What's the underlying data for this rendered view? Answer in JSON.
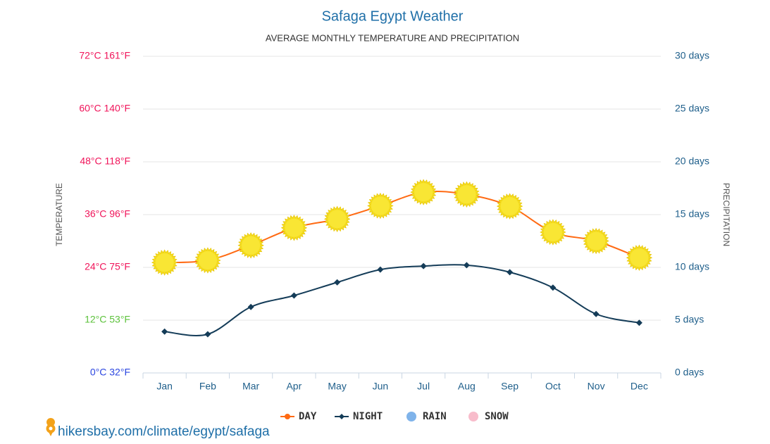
{
  "chart_data": {
    "type": "line",
    "title": "Safaga Egypt Weather",
    "subtitle": "AVERAGE MONTHLY TEMPERATURE AND PRECIPITATION",
    "y_label": "TEMPERATURE",
    "y2_label": "PRECIPITATION",
    "source": "hikersbay.com/climate/egypt/safaga",
    "categories": [
      "Jan",
      "Feb",
      "Mar",
      "Apr",
      "May",
      "Jun",
      "Jul",
      "Aug",
      "Sep",
      "Oct",
      "Nov",
      "Dec"
    ],
    "series": [
      {
        "name": "DAY",
        "color": "#ff6a13",
        "marker": "sun",
        "values": [
          25.1,
          25.6,
          29,
          33,
          35,
          38,
          41.1,
          40.6,
          37.9,
          32,
          30,
          26.2
        ]
      },
      {
        "name": "NIGHT",
        "color": "#143c58",
        "marker": "diamond",
        "values": [
          9.4,
          8.8,
          15,
          17.6,
          20.6,
          23.5,
          24.3,
          24.5,
          22.9,
          19.4,
          13.4,
          11.4
        ]
      },
      {
        "name": "RAIN",
        "color": "#7fb3ea",
        "axis": "y2"
      },
      {
        "name": "SNOW",
        "color": "#f8bccb",
        "axis": "y2"
      }
    ],
    "ylim": [
      0,
      72
    ],
    "yticks": [
      {
        "value": 0,
        "label": "0°C 32°F"
      },
      {
        "value": 12,
        "label": "12°C 53°F"
      },
      {
        "value": 24,
        "label": "24°C 75°F"
      },
      {
        "value": 36,
        "label": "36°C 96°F"
      },
      {
        "value": 48,
        "label": "48°C 118°F"
      },
      {
        "value": 60,
        "label": "60°C 140°F"
      },
      {
        "value": 72,
        "label": "72°C 161°F"
      }
    ],
    "ytick_colors": [
      "#2a45e0",
      "#5cc23b",
      "#f0145a",
      "#f0145a",
      "#f0145a",
      "#f0145a",
      "#f0145a"
    ],
    "y2lim": [
      0,
      30
    ],
    "y2ticks": [
      {
        "value": 0,
        "label": "0 days"
      },
      {
        "value": 5,
        "label": "5 days"
      },
      {
        "value": 10,
        "label": "10 days"
      },
      {
        "value": 15,
        "label": "15 days"
      },
      {
        "value": 20,
        "label": "20 days"
      },
      {
        "value": 25,
        "label": "25 days"
      },
      {
        "value": 30,
        "label": "30 days"
      }
    ],
    "grid": true
  }
}
